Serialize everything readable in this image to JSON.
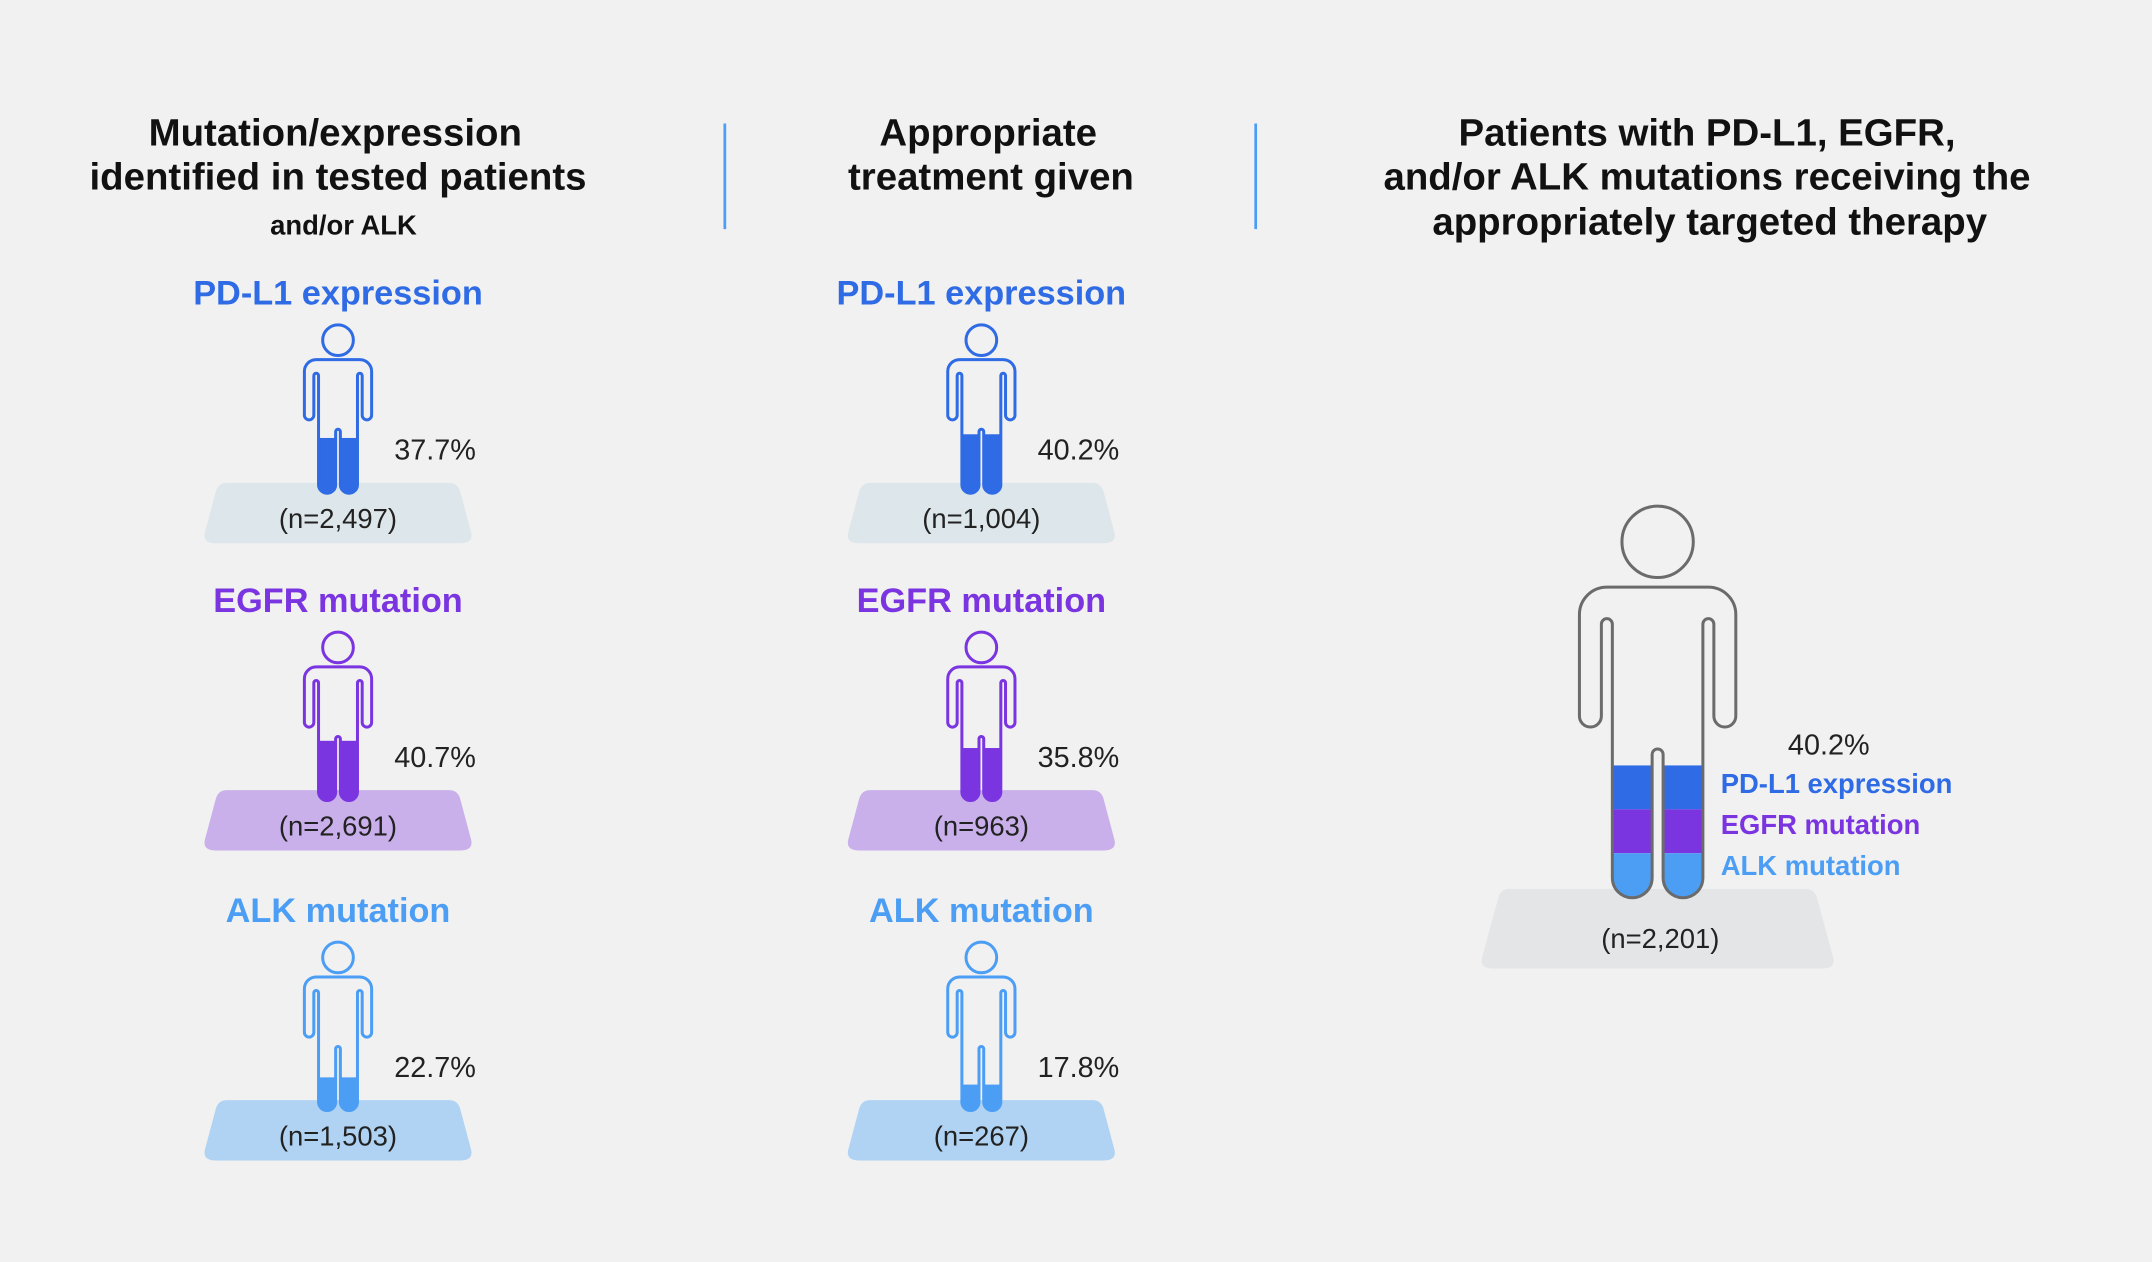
{
  "colors": {
    "background": "#f1f1f1",
    "pdl1": "#2f6be4",
    "egfr": "#7a35e0",
    "alk": "#4c9ef5",
    "divider": "#4c9ef5",
    "outline_total": "#6b6b6b"
  },
  "columns": [
    {
      "title_lines": [
        "Mutation/expression",
        "identified in tested patients"
      ],
      "subtitle": "and/or ALK",
      "groups": [
        {
          "label": "PD-L1 expression",
          "key": "pdl1",
          "percent": 37.7,
          "percent_text": "37.7%",
          "n_text": "(n=2,497)",
          "platform": "#dde6ea"
        },
        {
          "label": "EGFR mutation",
          "key": "egfr",
          "percent": 40.7,
          "percent_text": "40.7%",
          "n_text": "(n=2,691)",
          "platform": "#c9b0eb"
        },
        {
          "label": "ALK mutation",
          "key": "alk",
          "percent": 22.7,
          "percent_text": "22.7%",
          "n_text": "(n=1,503)",
          "platform": "#b0d3f4"
        }
      ]
    },
    {
      "title_lines": [
        "Appropriate",
        "treatment given"
      ],
      "groups": [
        {
          "label": "PD-L1 expression",
          "key": "pdl1",
          "percent": 40.2,
          "percent_text": "40.2%",
          "n_text": "(n=1,004)",
          "platform": "#dde6ea"
        },
        {
          "label": "EGFR mutation",
          "key": "egfr",
          "percent": 35.8,
          "percent_text": "35.8%",
          "n_text": "(n=963)",
          "platform": "#c9b0eb"
        },
        {
          "label": "ALK mutation",
          "key": "alk",
          "percent": 17.8,
          "percent_text": "17.8%",
          "n_text": "(n=267)",
          "platform": "#b0d3f4"
        }
      ]
    }
  ],
  "summary": {
    "title_lines": [
      "Patients with PD-L1, EGFR,",
      "and/or ALK mutations receiving the",
      "appropriately targeted therapy"
    ],
    "percent": 40.2,
    "percent_text": "40.2%",
    "n_text": "(n=2,201)",
    "platform": "#e4e5e7",
    "legend": [
      {
        "label": "PD-L1 expression",
        "key": "pdl1"
      },
      {
        "label": "EGFR mutation",
        "key": "egfr"
      },
      {
        "label": "ALK mutation",
        "key": "alk"
      }
    ]
  }
}
